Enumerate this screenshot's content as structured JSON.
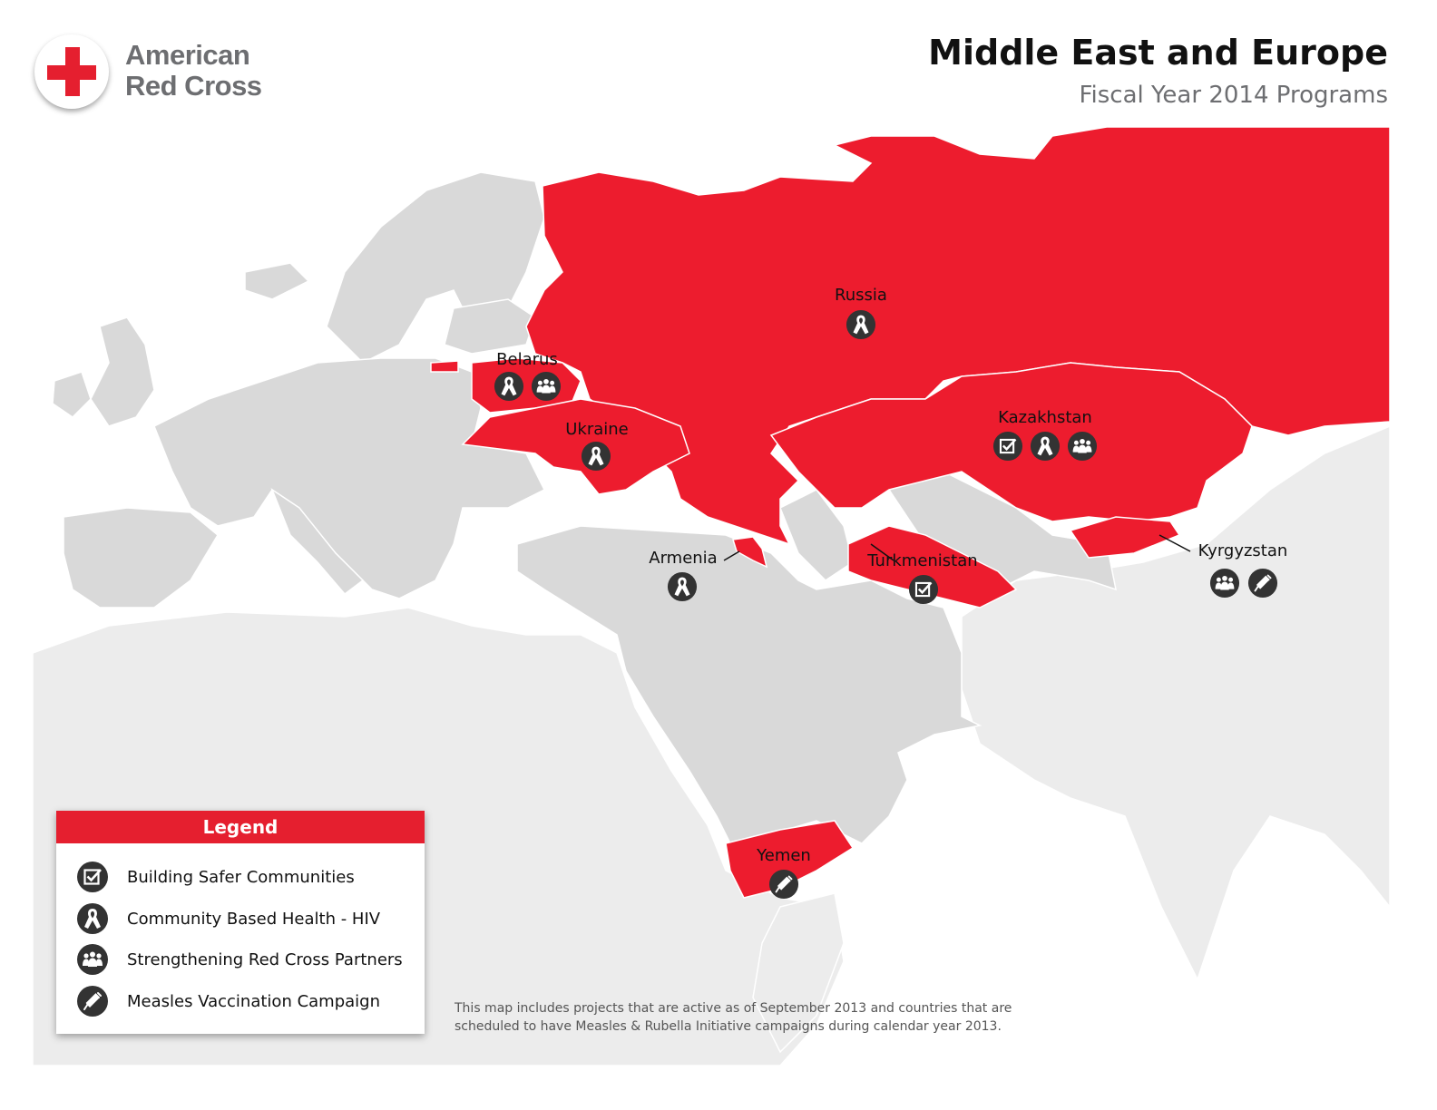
{
  "header": {
    "logo_text_line1": "American",
    "logo_text_line2": "Red Cross",
    "title": "Middle East and Europe",
    "subtitle": "Fiscal Year 2014 Programs"
  },
  "colors": {
    "highlight": "#ed1c2e",
    "land": "#d9d9d9",
    "land_far": "#ececec",
    "border": "#ffffff",
    "icon": "#333333"
  },
  "countries": [
    {
      "name": "Russia",
      "programs": [
        "hiv"
      ]
    },
    {
      "name": "Belarus",
      "programs": [
        "hiv",
        "partners"
      ]
    },
    {
      "name": "Ukraine",
      "programs": [
        "hiv"
      ]
    },
    {
      "name": "Kazakhstan",
      "programs": [
        "safer",
        "hiv",
        "partners"
      ]
    },
    {
      "name": "Armenia",
      "programs": [
        "hiv"
      ]
    },
    {
      "name": "Turkmenistan",
      "programs": [
        "safer"
      ]
    },
    {
      "name": "Kyrgyzstan",
      "programs": [
        "partners",
        "measles"
      ]
    },
    {
      "name": "Yemen",
      "programs": [
        "measles"
      ]
    }
  ],
  "legend": {
    "title": "Legend",
    "items": [
      {
        "icon": "checkbox-icon",
        "label": "Building Safer Communities"
      },
      {
        "icon": "ribbon-icon",
        "label": "Community Based Health - HIV"
      },
      {
        "icon": "people-icon",
        "label": "Strengthening Red Cross Partners"
      },
      {
        "icon": "syringe-icon",
        "label": "Measles Vaccination Campaign"
      }
    ]
  },
  "note": {
    "line1": "This map includes projects that are active as of September 2013 and countries that are",
    "line2": "scheduled to have Measles & Rubella Initiative campaigns during calendar year 2013."
  }
}
